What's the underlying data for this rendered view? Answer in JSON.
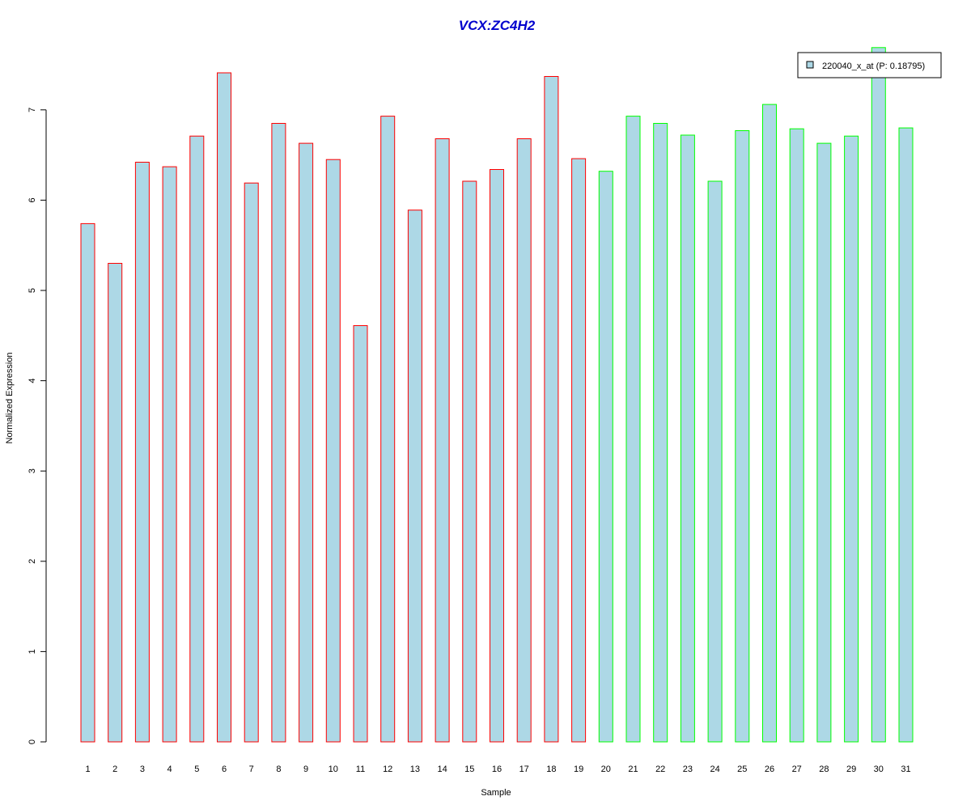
{
  "chart_data": {
    "type": "bar",
    "title": "VCX:ZC4H2",
    "title_color": "#0000CD",
    "xlabel": "Sample",
    "ylabel": "Normalized Expression",
    "ylim": [
      0,
      7.7
    ],
    "yticks": [
      0,
      1,
      2,
      3,
      4,
      5,
      6,
      7
    ],
    "grid": false,
    "legend_position": "top-right",
    "categories": [
      "1",
      "2",
      "3",
      "4",
      "5",
      "6",
      "7",
      "8",
      "9",
      "10",
      "11",
      "12",
      "13",
      "14",
      "15",
      "16",
      "17",
      "18",
      "19",
      "20",
      "21",
      "22",
      "23",
      "24",
      "25",
      "26",
      "27",
      "28",
      "29",
      "30",
      "31"
    ],
    "series": [
      {
        "name": "220040_x_at (P: 0.18795)",
        "fill_color": "#ADD8E6",
        "values": [
          5.74,
          5.3,
          6.42,
          6.37,
          6.71,
          7.41,
          6.19,
          6.85,
          6.63,
          6.45,
          4.61,
          6.93,
          5.89,
          6.68,
          6.21,
          6.34,
          6.68,
          7.37,
          6.46,
          6.32,
          6.93,
          6.85,
          6.72,
          6.21,
          6.77,
          7.06,
          6.79,
          6.63,
          6.71,
          7.69,
          6.8
        ],
        "group_colors": [
          "#FF0000",
          "#FF0000",
          "#FF0000",
          "#FF0000",
          "#FF0000",
          "#FF0000",
          "#FF0000",
          "#FF0000",
          "#FF0000",
          "#FF0000",
          "#FF0000",
          "#FF0000",
          "#FF0000",
          "#FF0000",
          "#FF0000",
          "#FF0000",
          "#FF0000",
          "#FF0000",
          "#FF0000",
          "#00FF00",
          "#00FF00",
          "#00FF00",
          "#00FF00",
          "#00FF00",
          "#00FF00",
          "#00FF00",
          "#00FF00",
          "#00FF00",
          "#00FF00",
          "#00FF00",
          "#00FF00"
        ]
      }
    ]
  }
}
